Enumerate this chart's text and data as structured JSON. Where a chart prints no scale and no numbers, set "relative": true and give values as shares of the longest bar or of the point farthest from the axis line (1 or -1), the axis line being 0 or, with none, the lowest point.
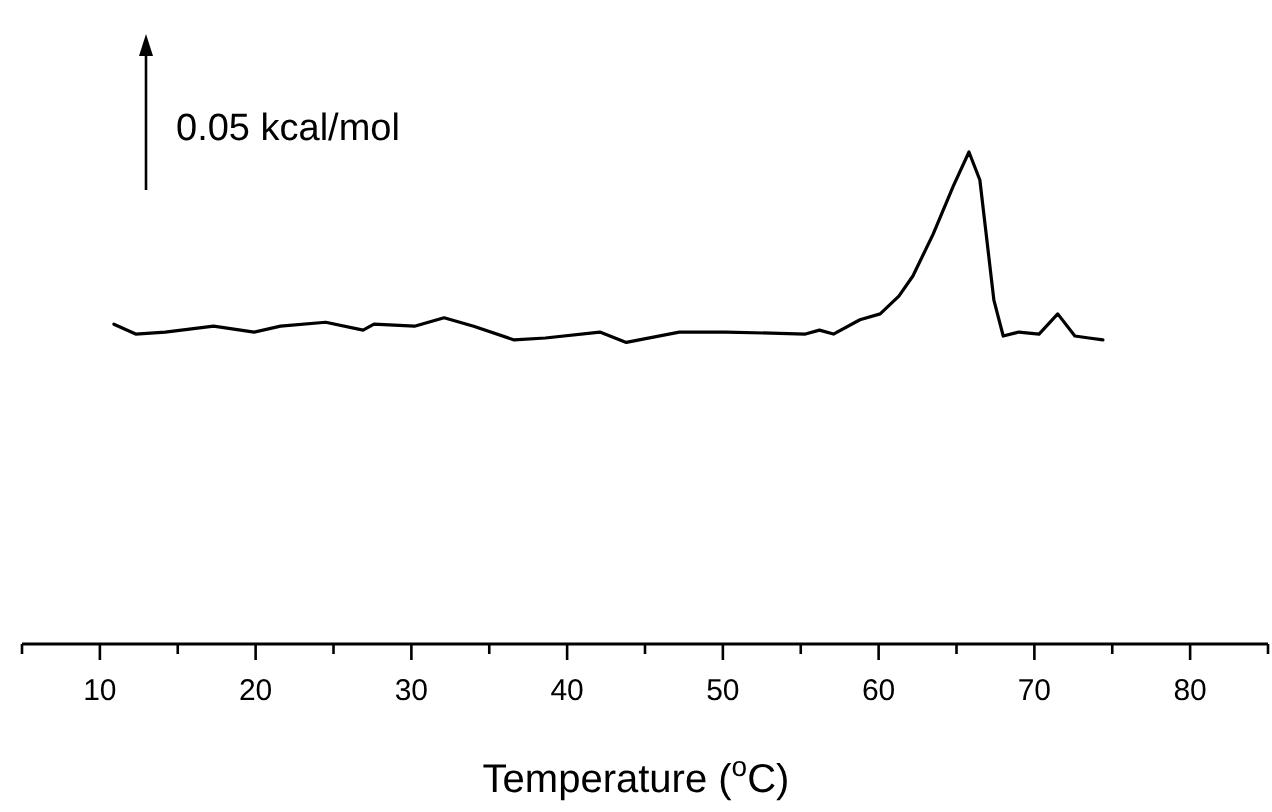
{
  "chart_data": {
    "type": "line",
    "relative": true,
    "xlabel": "Temperature ($^{o}$C)",
    "annotations": [
      "0.05 kcal/mol"
    ],
    "xlim": [
      5,
      85
    ],
    "xticks": [
      {
        "value": 5,
        "label": null
      },
      10,
      {
        "value": 15,
        "label": null
      },
      20,
      {
        "value": 25,
        "label": null
      },
      30,
      {
        "value": 35,
        "label": null
      },
      40,
      {
        "value": 45,
        "label": null
      },
      50,
      {
        "value": 55,
        "label": null
      },
      60,
      {
        "value": 65,
        "label": null
      },
      70,
      {
        "value": 75,
        "label": null
      },
      80,
      {
        "value": 85,
        "label": null
      }
    ],
    "x": [
      10.9,
      12.3,
      14.2,
      17.3,
      19.9,
      21.6,
      24.5,
      26.9,
      27.6,
      30.2,
      32.1,
      34.0,
      36.6,
      38.6,
      42.1,
      43.8,
      47.2,
      50.2,
      55.3,
      56.2,
      57.1,
      58.8,
      60.1,
      61.3,
      62.2,
      63.5,
      64.8,
      65.8,
      66.5,
      67.4,
      68.0,
      69.0,
      70.3,
      71.5,
      72.6,
      73.5,
      74.4
    ],
    "series": [
      {
        "color": "#000000",
        "values": [
          0.65,
          0.63,
          0.634,
          0.646,
          0.634,
          0.646,
          0.654,
          0.638,
          0.65,
          0.646,
          0.663,
          0.646,
          0.618,
          0.622,
          0.634,
          0.613,
          0.634,
          0.634,
          0.63,
          0.638,
          0.63,
          0.659,
          0.671,
          0.707,
          0.748,
          0.833,
          0.931,
          1,
          0.943,
          0.699,
          0.626,
          0.634,
          0.63,
          0.671,
          0.626,
          0.622,
          0.618
        ]
      }
    ],
    "grid": false,
    "line_style": "solid"
  }
}
